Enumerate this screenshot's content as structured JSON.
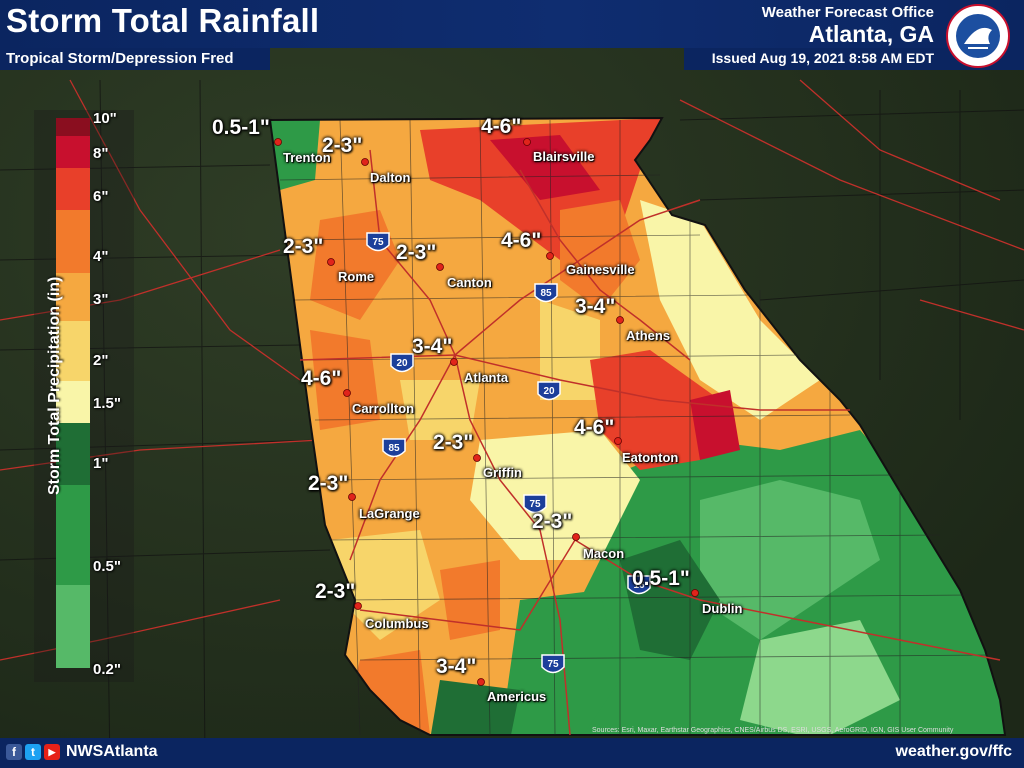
{
  "header": {
    "title": "Storm Total Rainfall",
    "subtitle": "Tropical Storm/Depression Fred",
    "office": "Weather Forecast Office",
    "city": "Atlanta, GA",
    "issued": "Issued Aug 19, 2021 8:58 AM EDT",
    "logo_text": "NATIONAL WEATHER SERVICE"
  },
  "legend": {
    "title": "Storm Total Precipitation (in)",
    "ticks": [
      "10\"",
      "8\"",
      "6\"",
      "4\"",
      "3\"",
      "2\"",
      "1.5\"",
      "1\"",
      "0.5\"",
      "0.2\""
    ],
    "colors": [
      "#8a0e1f",
      "#c8102e",
      "#e8402a",
      "#f27a2c",
      "#f5a840",
      "#f7d56a",
      "#f9f5a8",
      "#1f6e35",
      "#2e9a47",
      "#56b968",
      "#8dd88c"
    ]
  },
  "ranges": [
    "0.5-1\"",
    "2-3\"",
    "4-6\"",
    "2-3\"",
    "2-3\"",
    "4-6\"",
    "3-4\"",
    "3-4\"",
    "4-6\"",
    "4-6\"",
    "2-3\"",
    "2-3\"",
    "2-3\"",
    "0.5-1\"",
    "2-3\"",
    "3-4\""
  ],
  "cities": [
    "Trenton",
    "Dalton",
    "Blairsville",
    "Rome",
    "Canton",
    "Gainesville",
    "Athens",
    "Atlanta",
    "Carrollton",
    "Eatonton",
    "Griffin",
    "LaGrange",
    "Macon",
    "Dublin",
    "Columbus",
    "Americus"
  ],
  "interstates": [
    "75",
    "85",
    "20",
    "20",
    "85",
    "75",
    "16",
    "75"
  ],
  "footer": {
    "social": [
      "f",
      "t",
      "▶"
    ],
    "handle": "NWSAtlanta",
    "website": "weather.gov/ffc",
    "credits": "Sources: Esri, Maxar, Earthstar Geographics, CNES/Airbus DS, ESRI, USGS, AeroGRID, IGN, GIS User Community"
  }
}
